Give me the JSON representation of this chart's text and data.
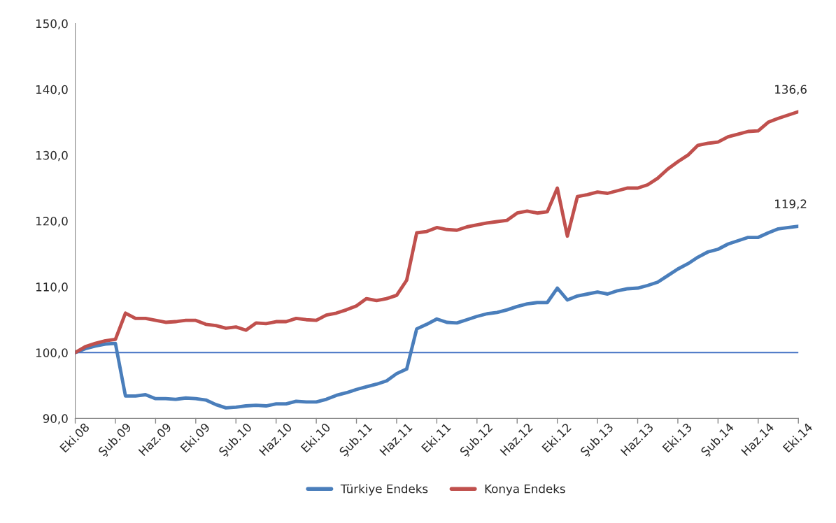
{
  "chart_data": {
    "type": "line",
    "categories": [
      "Eki.08",
      null,
      null,
      null,
      "Şub.09",
      null,
      null,
      null,
      "Haz.09",
      null,
      null,
      null,
      "Eki.09",
      null,
      null,
      null,
      "Şub.10",
      null,
      null,
      null,
      "Haz.10",
      null,
      null,
      null,
      "Eki.10",
      null,
      null,
      null,
      "Şub.11",
      null,
      null,
      null,
      "Haz.11",
      null,
      null,
      null,
      "Eki.11",
      null,
      null,
      null,
      "Şub.12",
      null,
      null,
      null,
      "Haz.12",
      null,
      null,
      null,
      "Eki.12",
      null,
      null,
      null,
      "Şub.13",
      null,
      null,
      null,
      "Haz.13",
      null,
      null,
      null,
      "Eki.13",
      null,
      null,
      null,
      "Şub.14",
      null,
      null,
      null,
      "Haz.14",
      null,
      null,
      null,
      "Eki.14"
    ],
    "series": [
      {
        "name": "Türkiye Endeks",
        "color": "#4a7ebb",
        "values": [
          100.0,
          100.6,
          101.0,
          101.3,
          101.4,
          93.4,
          93.4,
          93.6,
          93.0,
          93.0,
          92.9,
          93.1,
          93.0,
          92.8,
          92.1,
          91.6,
          91.7,
          91.9,
          92.0,
          91.9,
          92.2,
          92.2,
          92.6,
          92.5,
          92.5,
          92.9,
          93.5,
          93.9,
          94.4,
          94.8,
          95.2,
          95.7,
          96.8,
          97.5,
          103.6,
          104.3,
          105.1,
          104.6,
          104.5,
          105.0,
          105.5,
          105.9,
          106.1,
          106.5,
          107.0,
          107.4,
          107.6,
          107.6,
          109.8,
          108.0,
          108.6,
          108.9,
          109.2,
          108.9,
          109.4,
          109.7,
          109.8,
          110.2,
          110.7,
          111.7,
          112.7,
          113.5,
          114.5,
          115.3,
          115.7,
          116.5,
          117.0,
          117.5,
          117.5,
          118.2,
          118.8,
          119.0,
          119.2
        ],
        "value_labels": [
          null,
          null,
          null,
          null,
          null,
          null,
          null,
          null,
          null,
          null,
          null,
          null,
          null,
          null,
          null,
          null,
          null,
          null,
          null,
          null,
          null,
          null,
          null,
          null,
          null,
          null,
          null,
          null,
          null,
          null,
          null,
          null,
          null,
          null,
          null,
          null,
          null,
          null,
          null,
          null,
          null,
          null,
          null,
          null,
          null,
          null,
          null,
          null,
          null,
          null,
          null,
          null,
          null,
          null,
          null,
          null,
          null,
          null,
          null,
          null,
          null,
          null,
          null,
          null,
          null,
          null,
          null,
          null,
          null,
          null,
          null,
          null,
          "119,2"
        ]
      },
      {
        "name": "Konya Endeks",
        "color": "#c0504d",
        "values": [
          100.0,
          100.9,
          101.4,
          101.8,
          102.0,
          106.0,
          105.2,
          105.2,
          104.9,
          104.6,
          104.7,
          104.9,
          104.9,
          104.3,
          104.1,
          103.7,
          103.9,
          103.4,
          104.5,
          104.4,
          104.7,
          104.7,
          105.2,
          105.0,
          104.9,
          105.7,
          106.0,
          106.5,
          107.1,
          108.2,
          107.9,
          108.2,
          108.7,
          111.0,
          118.2,
          118.4,
          119.0,
          118.7,
          118.6,
          119.1,
          119.4,
          119.7,
          119.9,
          120.1,
          121.2,
          121.5,
          121.2,
          121.4,
          125.0,
          117.7,
          123.7,
          124.0,
          124.4,
          124.2,
          124.6,
          125.0,
          125.0,
          125.5,
          126.5,
          127.9,
          129.0,
          130.0,
          131.5,
          131.8,
          132.0,
          132.8,
          133.2,
          133.6,
          133.7,
          135.0,
          135.6,
          136.1,
          136.6
        ],
        "value_labels": [
          null,
          null,
          null,
          null,
          null,
          null,
          null,
          null,
          null,
          null,
          null,
          null,
          null,
          null,
          null,
          null,
          null,
          null,
          null,
          null,
          null,
          null,
          null,
          null,
          null,
          null,
          null,
          null,
          null,
          null,
          null,
          null,
          null,
          null,
          null,
          null,
          null,
          null,
          null,
          null,
          null,
          null,
          null,
          null,
          null,
          null,
          null,
          null,
          null,
          null,
          null,
          null,
          null,
          null,
          null,
          null,
          null,
          null,
          null,
          null,
          null,
          null,
          null,
          null,
          null,
          null,
          null,
          null,
          null,
          null,
          null,
          null,
          "136,6"
        ]
      }
    ],
    "ylim": [
      90,
      150
    ],
    "yticks": [
      {
        "value": 90,
        "label": "90,0"
      },
      {
        "value": 100,
        "label": "100,0"
      },
      {
        "value": 110,
        "label": "110,0"
      },
      {
        "value": 120,
        "label": "120,0"
      },
      {
        "value": 130,
        "label": "130,0"
      },
      {
        "value": 140,
        "label": "140,0"
      },
      {
        "value": 150,
        "label": "150,0"
      }
    ],
    "ref_lines": [
      {
        "axis": "y",
        "value": 100,
        "color": "#4472c4"
      }
    ],
    "grid": false,
    "legend": "bottom",
    "marker": "none",
    "line_style": "solid"
  }
}
